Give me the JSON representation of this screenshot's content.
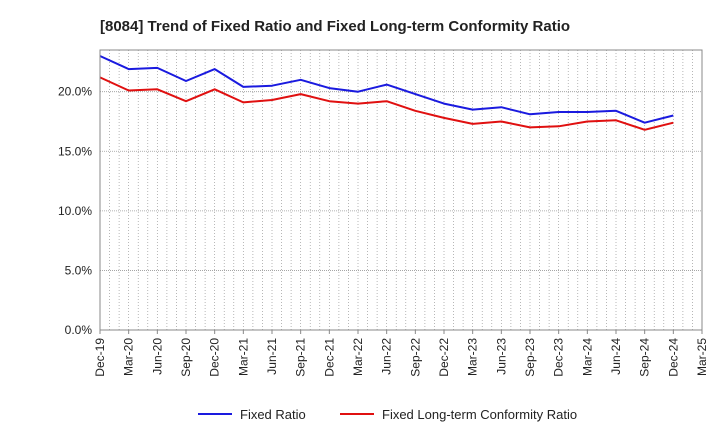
{
  "chart_data": {
    "type": "line",
    "title": "[8084]  Trend of Fixed Ratio and Fixed Long-term Conformity Ratio",
    "xlabel": "",
    "ylabel": "",
    "ylim": [
      0,
      23.5
    ],
    "y_ticks": [
      "0.0%",
      "5.0%",
      "10.0%",
      "15.0%",
      "20.0%"
    ],
    "y_tick_values": [
      0,
      5,
      10,
      15,
      20
    ],
    "grid": true,
    "legend_position": "bottom",
    "categories": [
      "Dec-19",
      "Mar-20",
      "Jun-20",
      "Sep-20",
      "Dec-20",
      "Mar-21",
      "Jun-21",
      "Sep-21",
      "Dec-21",
      "Mar-22",
      "Jun-22",
      "Sep-22",
      "Dec-22",
      "Mar-23",
      "Jun-23",
      "Sep-23",
      "Dec-23",
      "Mar-24",
      "Jun-24",
      "Sep-24",
      "Dec-24",
      "Mar-25"
    ],
    "series": [
      {
        "name": "Fixed Ratio",
        "color": "#1a1adf",
        "values": [
          23.0,
          21.9,
          22.0,
          20.9,
          21.9,
          20.4,
          20.5,
          21.0,
          20.3,
          20.0,
          20.6,
          19.8,
          19.0,
          18.5,
          18.7,
          18.1,
          18.3,
          18.3,
          18.4,
          17.4,
          18.0,
          null
        ]
      },
      {
        "name": "Fixed Long-term Conformity Ratio",
        "color": "#e01010",
        "values": [
          21.2,
          20.1,
          20.2,
          19.2,
          20.2,
          19.1,
          19.3,
          19.8,
          19.2,
          19.0,
          19.2,
          18.4,
          17.8,
          17.3,
          17.5,
          17.0,
          17.1,
          17.5,
          17.6,
          16.8,
          17.4,
          null
        ]
      }
    ]
  }
}
